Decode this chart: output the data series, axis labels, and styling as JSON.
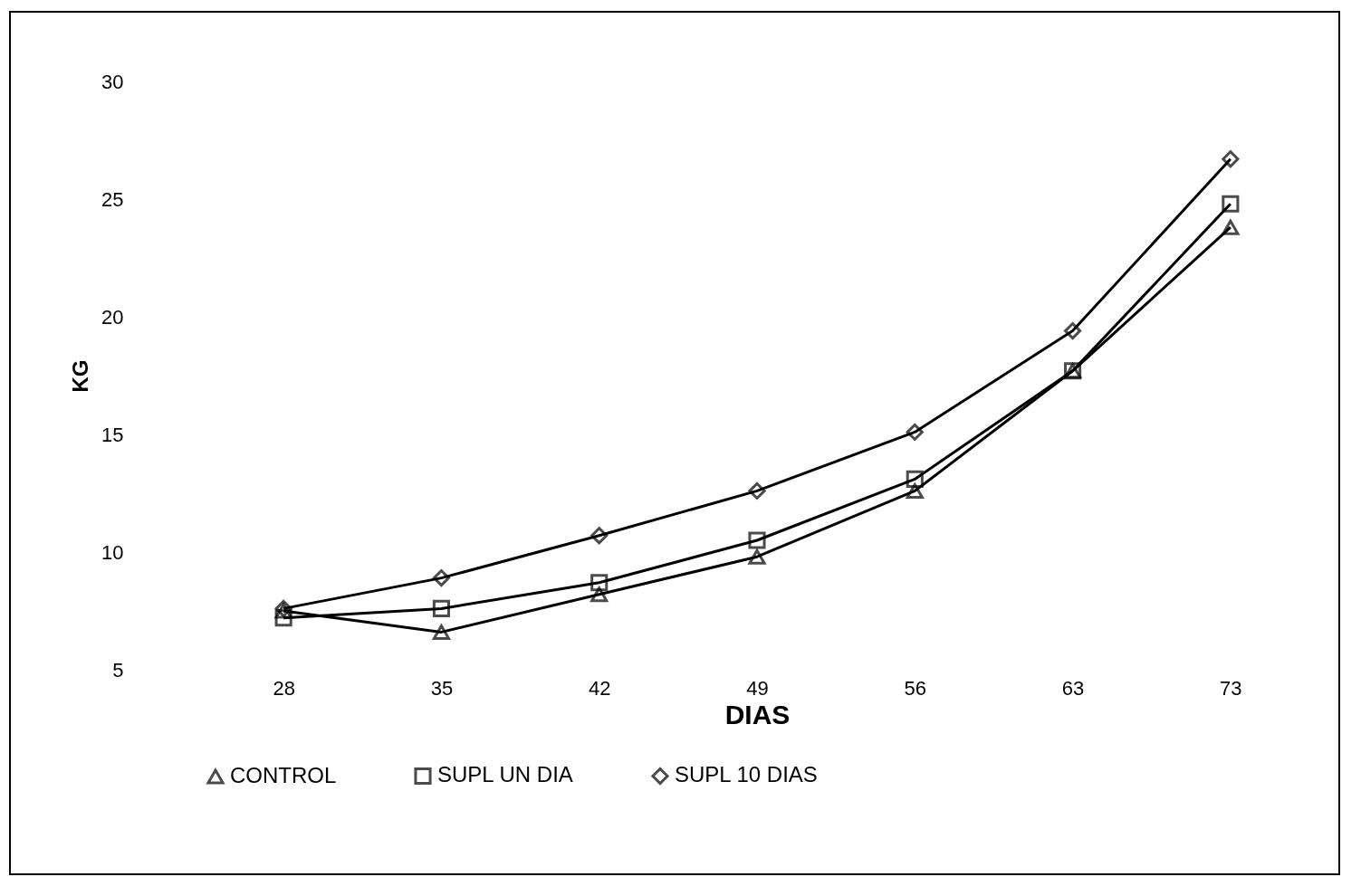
{
  "chart_data": {
    "type": "line",
    "xlabel": "DIAS",
    "ylabel": "KG",
    "categories": [
      "28",
      "35",
      "42",
      "49",
      "56",
      "63",
      "73"
    ],
    "ylim": [
      5,
      30
    ],
    "yticks": [
      5,
      10,
      15,
      20,
      25,
      30
    ],
    "grid": false,
    "legend": "bottom",
    "series": [
      {
        "name": "CONTROL",
        "color": "#000000",
        "marker": "triangle",
        "values": [
          7.5,
          6.6,
          8.2,
          9.8,
          12.6,
          17.7,
          23.8
        ]
      },
      {
        "name": "SUPL UN DIA",
        "color": "#000000",
        "marker": "square",
        "values": [
          7.2,
          7.6,
          8.7,
          10.5,
          13.1,
          17.7,
          24.8
        ]
      },
      {
        "name": "SUPL 10 DIAS",
        "color": "#000000",
        "marker": "diamond",
        "values": [
          7.6,
          8.9,
          10.7,
          12.6,
          15.1,
          19.4,
          26.7
        ]
      }
    ]
  }
}
